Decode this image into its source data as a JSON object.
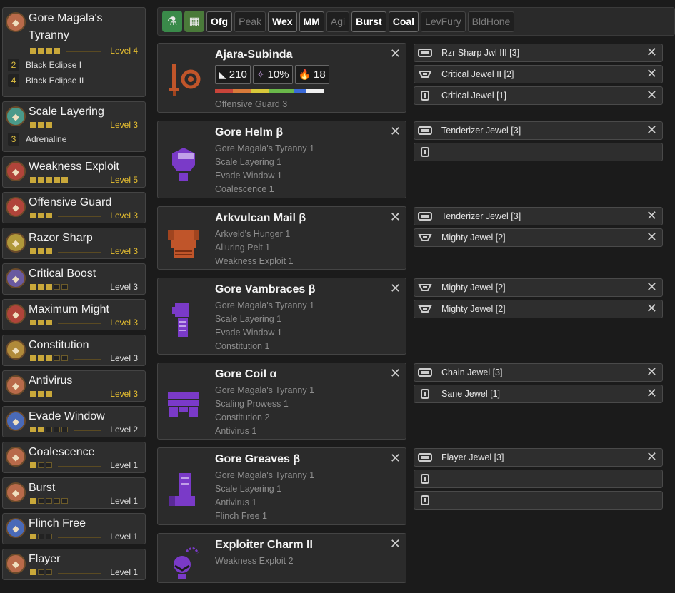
{
  "skills": [
    {
      "name": "Gore Magala's Tyranny",
      "level": 4,
      "max": 4,
      "level_text": "Level 4",
      "icon": "gore-magala-skill-icon",
      "color": "#b96a4a",
      "subs": [
        {
          "num": "2",
          "text": "Black Eclipse I"
        },
        {
          "num": "4",
          "text": "Black Eclipse II"
        }
      ]
    },
    {
      "name": "Scale Layering",
      "level": 3,
      "max": 3,
      "level_text": "Level 3",
      "icon": "scale-layering-skill-icon",
      "color": "#4a9a8a",
      "subs": [
        {
          "num": "3",
          "text": "Adrenaline"
        }
      ]
    },
    {
      "name": "Weakness Exploit",
      "level": 5,
      "max": 5,
      "level_text": "Level 5",
      "icon": "weakness-exploit-skill-icon",
      "color": "#b0443a",
      "subs": []
    },
    {
      "name": "Offensive Guard",
      "level": 3,
      "max": 3,
      "level_text": "Level 3",
      "icon": "offensive-guard-skill-icon",
      "color": "#b0443a",
      "subs": []
    },
    {
      "name": "Razor Sharp",
      "level": 3,
      "max": 3,
      "level_text": "Level 3",
      "icon": "razor-sharp-skill-icon",
      "color": "#b0983a",
      "subs": []
    },
    {
      "name": "Critical Boost",
      "level": 3,
      "max": 5,
      "level_text": "Level 3",
      "icon": "critical-boost-skill-icon",
      "color": "#6a5aa0",
      "subs": []
    },
    {
      "name": "Maximum Might",
      "level": 3,
      "max": 3,
      "level_text": "Level 3",
      "icon": "maximum-might-skill-icon",
      "color": "#b0443a",
      "subs": []
    },
    {
      "name": "Constitution",
      "level": 3,
      "max": 5,
      "level_text": "Level 3",
      "icon": "constitution-skill-icon",
      "color": "#b08a3a",
      "subs": []
    },
    {
      "name": "Antivirus",
      "level": 3,
      "max": 3,
      "level_text": "Level 3",
      "icon": "antivirus-skill-icon",
      "color": "#b86a4a",
      "subs": []
    },
    {
      "name": "Evade Window",
      "level": 2,
      "max": 5,
      "level_text": "Level 2",
      "icon": "evade-window-skill-icon",
      "color": "#4a6ab8",
      "subs": []
    },
    {
      "name": "Coalescence",
      "level": 1,
      "max": 3,
      "level_text": "Level 1",
      "icon": "coalescence-skill-icon",
      "color": "#b86a4a",
      "subs": []
    },
    {
      "name": "Burst",
      "level": 1,
      "max": 5,
      "level_text": "Level 1",
      "icon": "burst-skill-icon",
      "color": "#b86a4a",
      "subs": []
    },
    {
      "name": "Flinch Free",
      "level": 1,
      "max": 3,
      "level_text": "Level 1",
      "icon": "flinch-free-skill-icon",
      "color": "#4a6ab8",
      "subs": []
    },
    {
      "name": "Flayer",
      "level": 1,
      "max": 3,
      "level_text": "Level 1",
      "icon": "flayer-skill-icon",
      "color": "#b86a4a",
      "subs": []
    }
  ],
  "filters": {
    "icons": [
      {
        "icon": "potion-filter-icon",
        "color": "#3a8a4a"
      },
      {
        "icon": "map-filter-icon",
        "color": "#4a7a3a"
      }
    ],
    "buttons": [
      {
        "label": "Ofg",
        "active": true
      },
      {
        "label": "Peak",
        "active": false
      },
      {
        "label": "Wex",
        "active": true
      },
      {
        "label": "MM",
        "active": true
      },
      {
        "label": "Agi",
        "active": false
      },
      {
        "label": "Burst",
        "active": true
      },
      {
        "label": "Coal",
        "active": true
      },
      {
        "label": "LevFury",
        "active": false
      },
      {
        "label": "BldHone",
        "active": false
      }
    ]
  },
  "weapon": {
    "name": "Ajara-Subinda",
    "icon": "sword-and-shield-icon",
    "attack": "210",
    "affinity": "10%",
    "element": "18",
    "sharpness": [
      {
        "color": "#c8443a",
        "pct": 15
      },
      {
        "color": "#d87a3a",
        "pct": 15
      },
      {
        "color": "#d8c83a",
        "pct": 15
      },
      {
        "color": "#6ab84a",
        "pct": 20
      },
      {
        "color": "#3a6ad8",
        "pct": 10
      },
      {
        "color": "#f0f0f0",
        "pct": 15
      }
    ],
    "skills": [
      "Offensive Guard 3"
    ]
  },
  "armor": [
    {
      "name": "Gore Helm β",
      "icon": "helm-icon",
      "skills": [
        "Gore Magala's Tyranny 1",
        "Scale Layering 1",
        "Evade Window 1",
        "Coalescence 1"
      ]
    },
    {
      "name": "Arkvulcan Mail β",
      "icon": "chest-armor-icon",
      "skills": [
        "Arkveld's Hunger 1",
        "Alluring Pelt 1",
        "Weakness Exploit 1"
      ]
    },
    {
      "name": "Gore Vambraces β",
      "icon": "arm-armor-icon",
      "skills": [
        "Gore Magala's Tyranny 1",
        "Scale Layering 1",
        "Evade Window 1",
        "Constitution 1"
      ]
    },
    {
      "name": "Gore Coil α",
      "icon": "waist-armor-icon",
      "skills": [
        "Gore Magala's Tyranny 1",
        "Scaling Prowess 1",
        "Constitution 2",
        "Antivirus 1"
      ]
    },
    {
      "name": "Gore Greaves β",
      "icon": "leg-armor-icon",
      "skills": [
        "Gore Magala's Tyranny 1",
        "Scale Layering 1",
        "Antivirus 1",
        "Flinch Free 1"
      ]
    },
    {
      "name": "Exploiter Charm II",
      "icon": "charm-icon",
      "skills": [
        "Weakness Exploit 2"
      ]
    }
  ],
  "jewels": [
    {
      "name": "Rzr Sharp Jwl III [3]",
      "size": 3,
      "filled": true
    },
    {
      "name": "Critical Jewel II [2]",
      "size": 2,
      "filled": true
    },
    {
      "name": "Critical Jewel [1]",
      "size": 1,
      "filled": true
    },
    {
      "name": "Tenderizer Jewel [3]",
      "size": 3,
      "filled": true
    },
    {
      "name": "",
      "size": 1,
      "filled": false
    },
    {
      "name": "Tenderizer Jewel [3]",
      "size": 3,
      "filled": true
    },
    {
      "name": "Mighty Jewel [2]",
      "size": 2,
      "filled": true
    },
    {
      "name": "Mighty Jewel [2]",
      "size": 2,
      "filled": true
    },
    {
      "name": "Mighty Jewel [2]",
      "size": 2,
      "filled": true
    },
    {
      "name": "Chain Jewel [3]",
      "size": 3,
      "filled": true
    },
    {
      "name": "Sane Jewel [1]",
      "size": 1,
      "filled": true
    },
    {
      "name": "Flayer Jewel [3]",
      "size": 3,
      "filled": true
    },
    {
      "name": "",
      "size": 1,
      "filled": false
    },
    {
      "name": "",
      "size": 1,
      "filled": false
    }
  ],
  "close_glyph": "✕"
}
